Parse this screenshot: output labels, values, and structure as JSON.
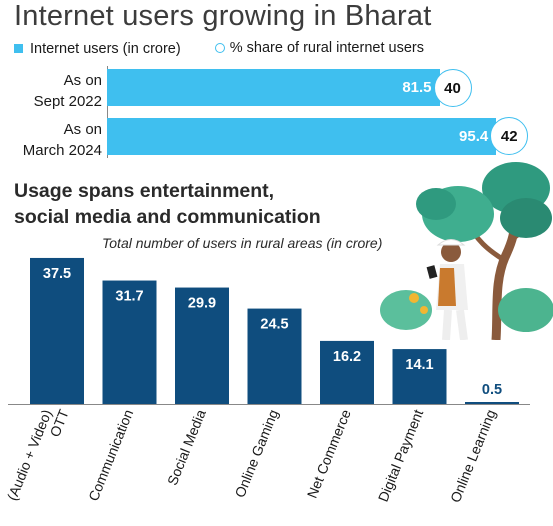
{
  "header": {
    "title": "Internet users growing in Bharat"
  },
  "legend": {
    "internet_users": "Internet users (in crore)",
    "rural_share": "% share of rural internet users"
  },
  "section2": {
    "heading_line1": "Usage spans entertainment,",
    "heading_line2": "social media and communication",
    "caption": "Total number of users in rural areas (in crore)"
  },
  "colors": {
    "light_blue": "#3fbfef",
    "navy": "#0f4d7e"
  },
  "chart_data": [
    {
      "type": "bar",
      "orientation": "horizontal",
      "categories": [
        [
          "As on",
          "Sept 2022"
        ],
        [
          "As on",
          "March 2024"
        ]
      ],
      "series": [
        {
          "name": "Internet users (in crore)",
          "values": [
            81.5,
            95.4
          ]
        },
        {
          "name": "% share of rural internet users",
          "values": [
            40,
            42
          ]
        }
      ],
      "xlim": [
        0,
        100
      ]
    },
    {
      "type": "bar",
      "orientation": "vertical",
      "categories": [
        [
          "OTT",
          "(Audio + Video)"
        ],
        [
          "Communication"
        ],
        [
          "Social Media"
        ],
        [
          "Online Gaming"
        ],
        [
          "Net Commerce"
        ],
        [
          "Digital Payment"
        ],
        [
          "Online Learning"
        ]
      ],
      "values": [
        37.5,
        31.7,
        29.9,
        24.5,
        16.2,
        14.1,
        0.5
      ],
      "value_labels": [
        "37.5",
        "31.7",
        "29.9",
        "24.5",
        "16.2",
        "14.1",
        "0.5"
      ],
      "ylim": [
        0,
        40
      ]
    }
  ]
}
